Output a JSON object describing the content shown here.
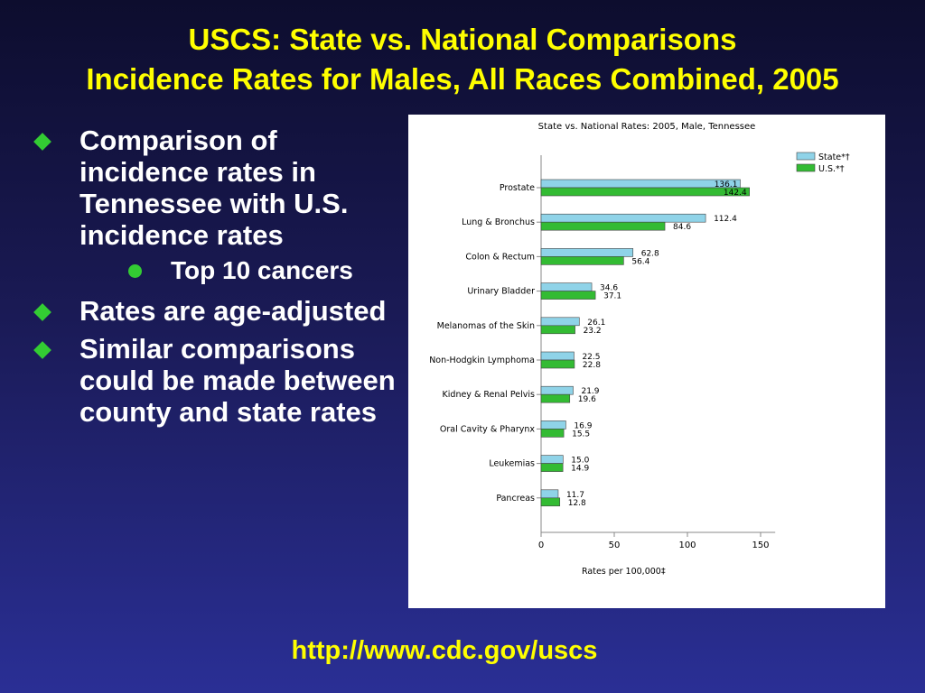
{
  "slide": {
    "title_line1": "USCS: State vs. National Comparisons",
    "title_line2": "Incidence Rates for Males, All Races Combined, 2005",
    "bullets": [
      {
        "text": "Comparison of incidence rates in Tennessee with U.S. incidence rates"
      },
      {
        "sub": "Top 10 cancers"
      },
      {
        "text": "Rates are age-adjusted"
      },
      {
        "text": "Similar comparisons could be made between county and state rates"
      }
    ],
    "footer_link": "http://www.cdc.gov/uscs"
  },
  "colors": {
    "title": "#ffff00",
    "bullet_marker": "#33cc33",
    "state_bar": "#8fd3e8",
    "us_bar": "#33bb33"
  },
  "chart_data": {
    "type": "bar",
    "orientation": "horizontal",
    "title": "State vs. National Rates: 2005, Male, Tennessee",
    "xlabel": "Rates per 100,000‡",
    "xlim": [
      0,
      160
    ],
    "xticks": [
      0,
      50,
      100,
      150
    ],
    "categories": [
      "Prostate",
      "Lung & Bronchus",
      "Colon & Rectum",
      "Urinary Bladder",
      "Melanomas of the Skin",
      "Non-Hodgkin Lymphoma",
      "Kidney & Renal Pelvis",
      "Oral Cavity & Pharynx",
      "Leukemias",
      "Pancreas"
    ],
    "series": [
      {
        "name": "State*†",
        "values": [
          136.1,
          112.4,
          62.8,
          34.6,
          26.1,
          22.5,
          21.9,
          16.9,
          15.0,
          11.7
        ],
        "labels": [
          "136.1",
          "112.4",
          "62.8",
          "34.6",
          "26.1",
          "22.5",
          "21.9",
          "16.9",
          "15.0",
          "11.7"
        ]
      },
      {
        "name": "U.S.*†",
        "values": [
          142.4,
          84.6,
          56.4,
          37.1,
          23.2,
          22.8,
          19.6,
          15.5,
          14.9,
          12.8
        ],
        "labels": [
          "142.4",
          "84.6",
          "56.4",
          "37.1",
          "23.2",
          "22.8",
          "19.6",
          "15.5",
          "14.9",
          "12.8"
        ]
      }
    ],
    "legend_position": "top-right",
    "grid": false
  }
}
